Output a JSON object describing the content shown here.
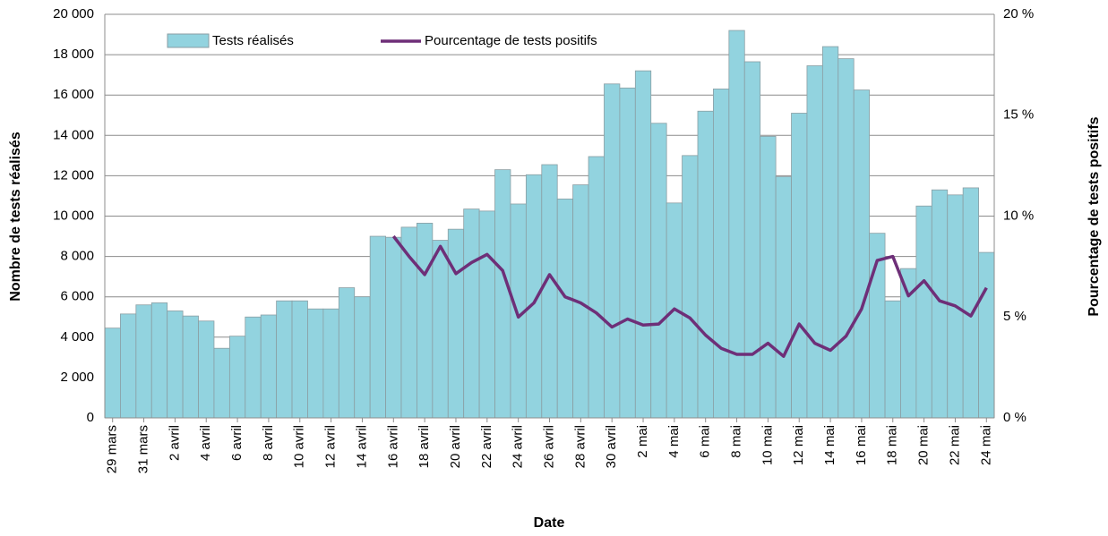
{
  "chart_data": {
    "type": "bar-line",
    "xlabel": "Date",
    "ylabel": "Nombre de tests réalisés",
    "y2label": "Pourcentage de tests positifs",
    "categories": [
      "29 mars",
      null,
      "31 mars",
      null,
      "2 avril",
      null,
      "4 avril",
      null,
      "6 avril",
      null,
      "8 avril",
      null,
      "10 avril",
      null,
      "12 avril",
      null,
      "14 avril",
      null,
      "16 avril",
      null,
      "18 avril",
      null,
      "20 avril",
      null,
      "22 avril",
      null,
      "24 avril",
      null,
      "26 avril",
      null,
      "28 avril",
      null,
      "30 avril",
      null,
      "2 mai",
      null,
      "4 mai",
      null,
      "6 mai",
      null,
      "8 mai",
      null,
      "10 mai",
      null,
      "12 mai",
      null,
      "14 mai",
      null,
      "16 mai",
      null,
      "18 mai",
      null,
      "20 mai",
      null,
      "22 mai",
      null,
      "24 mai"
    ],
    "series": [
      {
        "name": "Tests réalisés",
        "type": "bar",
        "color": "#92d3df",
        "values": [
          4450,
          5150,
          5600,
          5700,
          5300,
          5050,
          4800,
          3450,
          4050,
          5000,
          5100,
          5800,
          5800,
          5400,
          5400,
          6450,
          6000,
          9000,
          8950,
          9450,
          9650,
          8800,
          9350,
          10350,
          10250,
          12300,
          10600,
          12050,
          12550,
          10850,
          11550,
          12950,
          16550,
          16350,
          17200,
          14600,
          10650,
          13000,
          15200,
          16300,
          19200,
          17650,
          13950,
          11950,
          15100,
          17450,
          18400,
          17800,
          16250,
          9150,
          5800,
          7400,
          10500,
          11300,
          11050,
          11400,
          8200
        ]
      },
      {
        "name": "Pourcentage de tests positifs",
        "type": "line",
        "axis": "y2",
        "color": "#6e2f78",
        "values": [
          null,
          null,
          null,
          null,
          null,
          null,
          null,
          null,
          null,
          null,
          null,
          null,
          null,
          null,
          null,
          null,
          null,
          null,
          9.0,
          8.0,
          7.1,
          8.5,
          7.15,
          7.7,
          8.1,
          7.3,
          5.0,
          5.7,
          7.1,
          6.0,
          5.7,
          5.2,
          4.5,
          4.9,
          4.6,
          4.65,
          5.4,
          4.95,
          4.1,
          3.45,
          3.15,
          3.15,
          3.7,
          3.05,
          4.65,
          3.7,
          3.35,
          4.05,
          5.4,
          7.8,
          8.0,
          6.05,
          6.8,
          5.8,
          5.55,
          5.05,
          6.45
        ]
      }
    ],
    "ylim": [
      0,
      20000
    ],
    "yticks": [
      0,
      {
        "value": 2000,
        "label": "2 000"
      },
      {
        "value": 4000,
        "label": "4 000"
      },
      {
        "value": 6000,
        "label": "6 000"
      },
      {
        "value": 8000,
        "label": "8 000"
      },
      {
        "value": 10000,
        "label": "10 000"
      },
      {
        "value": 12000,
        "label": "12 000"
      },
      {
        "value": 14000,
        "label": "14 000"
      },
      {
        "value": 16000,
        "label": "16 000"
      },
      {
        "value": 18000,
        "label": "18 000"
      },
      {
        "value": 20000,
        "label": "20 000"
      }
    ],
    "y2lim": [
      0,
      20
    ],
    "y2ticks": [
      {
        "value": 0,
        "label": "0 %"
      },
      {
        "value": 5,
        "label": "5 %"
      },
      {
        "value": 10,
        "label": "10 %"
      },
      {
        "value": 15,
        "label": "15 %"
      },
      {
        "value": 20,
        "label": "20 %"
      }
    ],
    "grid": true,
    "legend": "top"
  }
}
